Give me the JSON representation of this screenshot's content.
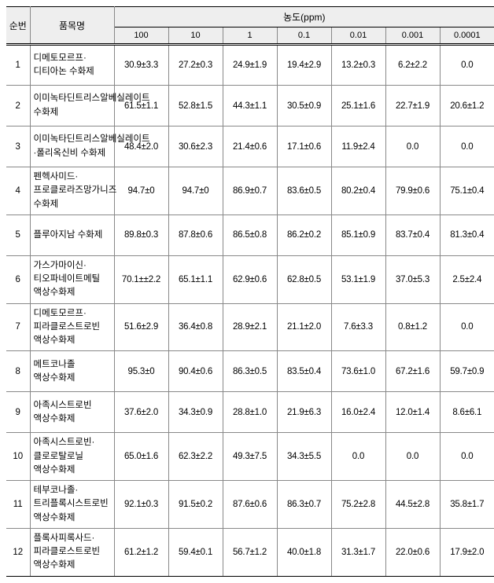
{
  "header": {
    "no": "순번",
    "name": "품목명",
    "group": "농도(ppm)",
    "concentrations": [
      "100",
      "10",
      "1",
      "0.1",
      "0.01",
      "0.001",
      "0.0001"
    ]
  },
  "rows": [
    {
      "no": "1",
      "name": "디메토모르프·디티아논 수화제",
      "vals": [
        "30.9±3.3",
        "27.2±0.3",
        "24.9±1.9",
        "19.4±2.9",
        "13.2±0.3",
        "6.2±2.2",
        "0.0"
      ]
    },
    {
      "no": "2",
      "name": "이미녹타딘트리스알베실레이트 수화제",
      "vals": [
        "61.5±1.1",
        "52.8±1.5",
        "44.3±1.1",
        "30.5±0.9",
        "25.1±1.6",
        "22.7±1.9",
        "20.6±1.2"
      ]
    },
    {
      "no": "3",
      "name": "이미녹타딘트리스알베실레이트·폴리옥신비 수화제",
      "vals": [
        "48.4±2.0",
        "30.6±2.3",
        "21.4±0.6",
        "17.1±0.6",
        "11.9±2.4",
        "0.0",
        "0.0"
      ]
    },
    {
      "no": "4",
      "name": "펜헥사미드·프로클로라즈망가니즈 수화제",
      "vals": [
        "94.7±0",
        "94.7±0",
        "86.9±0.7",
        "83.6±0.5",
        "80.2±0.4",
        "79.9±0.6",
        "75.1±0.4"
      ]
    },
    {
      "no": "5",
      "name": "플루아지남 수화제",
      "vals": [
        "89.8±0.3",
        "87.8±0.6",
        "86.5±0.8",
        "86.2±0.2",
        "85.1±0.9",
        "83.7±0.4",
        "81.3±0.4"
      ]
    },
    {
      "no": "6",
      "name": "가스가마이신·티오파네이트메틸 액상수화제",
      "vals": [
        "70.1±±2.2",
        "65.1±1.1",
        "62.9±0.6",
        "62.8±0.5",
        "53.1±1.9",
        "37.0±5.3",
        "2.5±2.4"
      ]
    },
    {
      "no": "7",
      "name": "디메토모르프·피라클로스트로빈 액상수화제",
      "vals": [
        "51.6±2.9",
        "36.4±0.8",
        "28.9±2.1",
        "21.1±2.0",
        "7.6±3.3",
        "0.8±1.2",
        "0.0"
      ]
    },
    {
      "no": "8",
      "name": "메트코나졸 액상수화제",
      "vals": [
        "95.3±0",
        "90.4±0.6",
        "86.3±0.5",
        "83.5±0.4",
        "73.6±1.0",
        "67.2±1.6",
        "59.7±0.9"
      ]
    },
    {
      "no": "9",
      "name": "아족시스트로빈 액상수화제",
      "vals": [
        "37.6±2.0",
        "34.3±0.9",
        "28.8±1.0",
        "21.9±6.3",
        "16.0±2.4",
        "12.0±1.4",
        "8.6±6.1"
      ]
    },
    {
      "no": "10",
      "name": "아족시스트로빈·클로로탈로닐 액상수화제",
      "vals": [
        "65.0±1.6",
        "62.3±2.2",
        "49.3±7.5",
        "34.3±5.5",
        "0.0",
        "0.0",
        "0.0"
      ]
    },
    {
      "no": "11",
      "name": "테부코나졸·트리플록시스트로빈 액상수화제",
      "vals": [
        "92.1±0.3",
        "91.5±0.2",
        "87.6±0.6",
        "86.3±0.7",
        "75.2±2.8",
        "44.5±2.8",
        "35.8±1.7"
      ]
    },
    {
      "no": "12",
      "name": "플록사피록사드·피라클로스트로빈 액상수화제",
      "vals": [
        "61.2±1.2",
        "59.4±0.1",
        "56.7±1.2",
        "40.0±1.8",
        "31.3±1.7",
        "22.0±0.6",
        "17.9±2.0"
      ]
    }
  ]
}
